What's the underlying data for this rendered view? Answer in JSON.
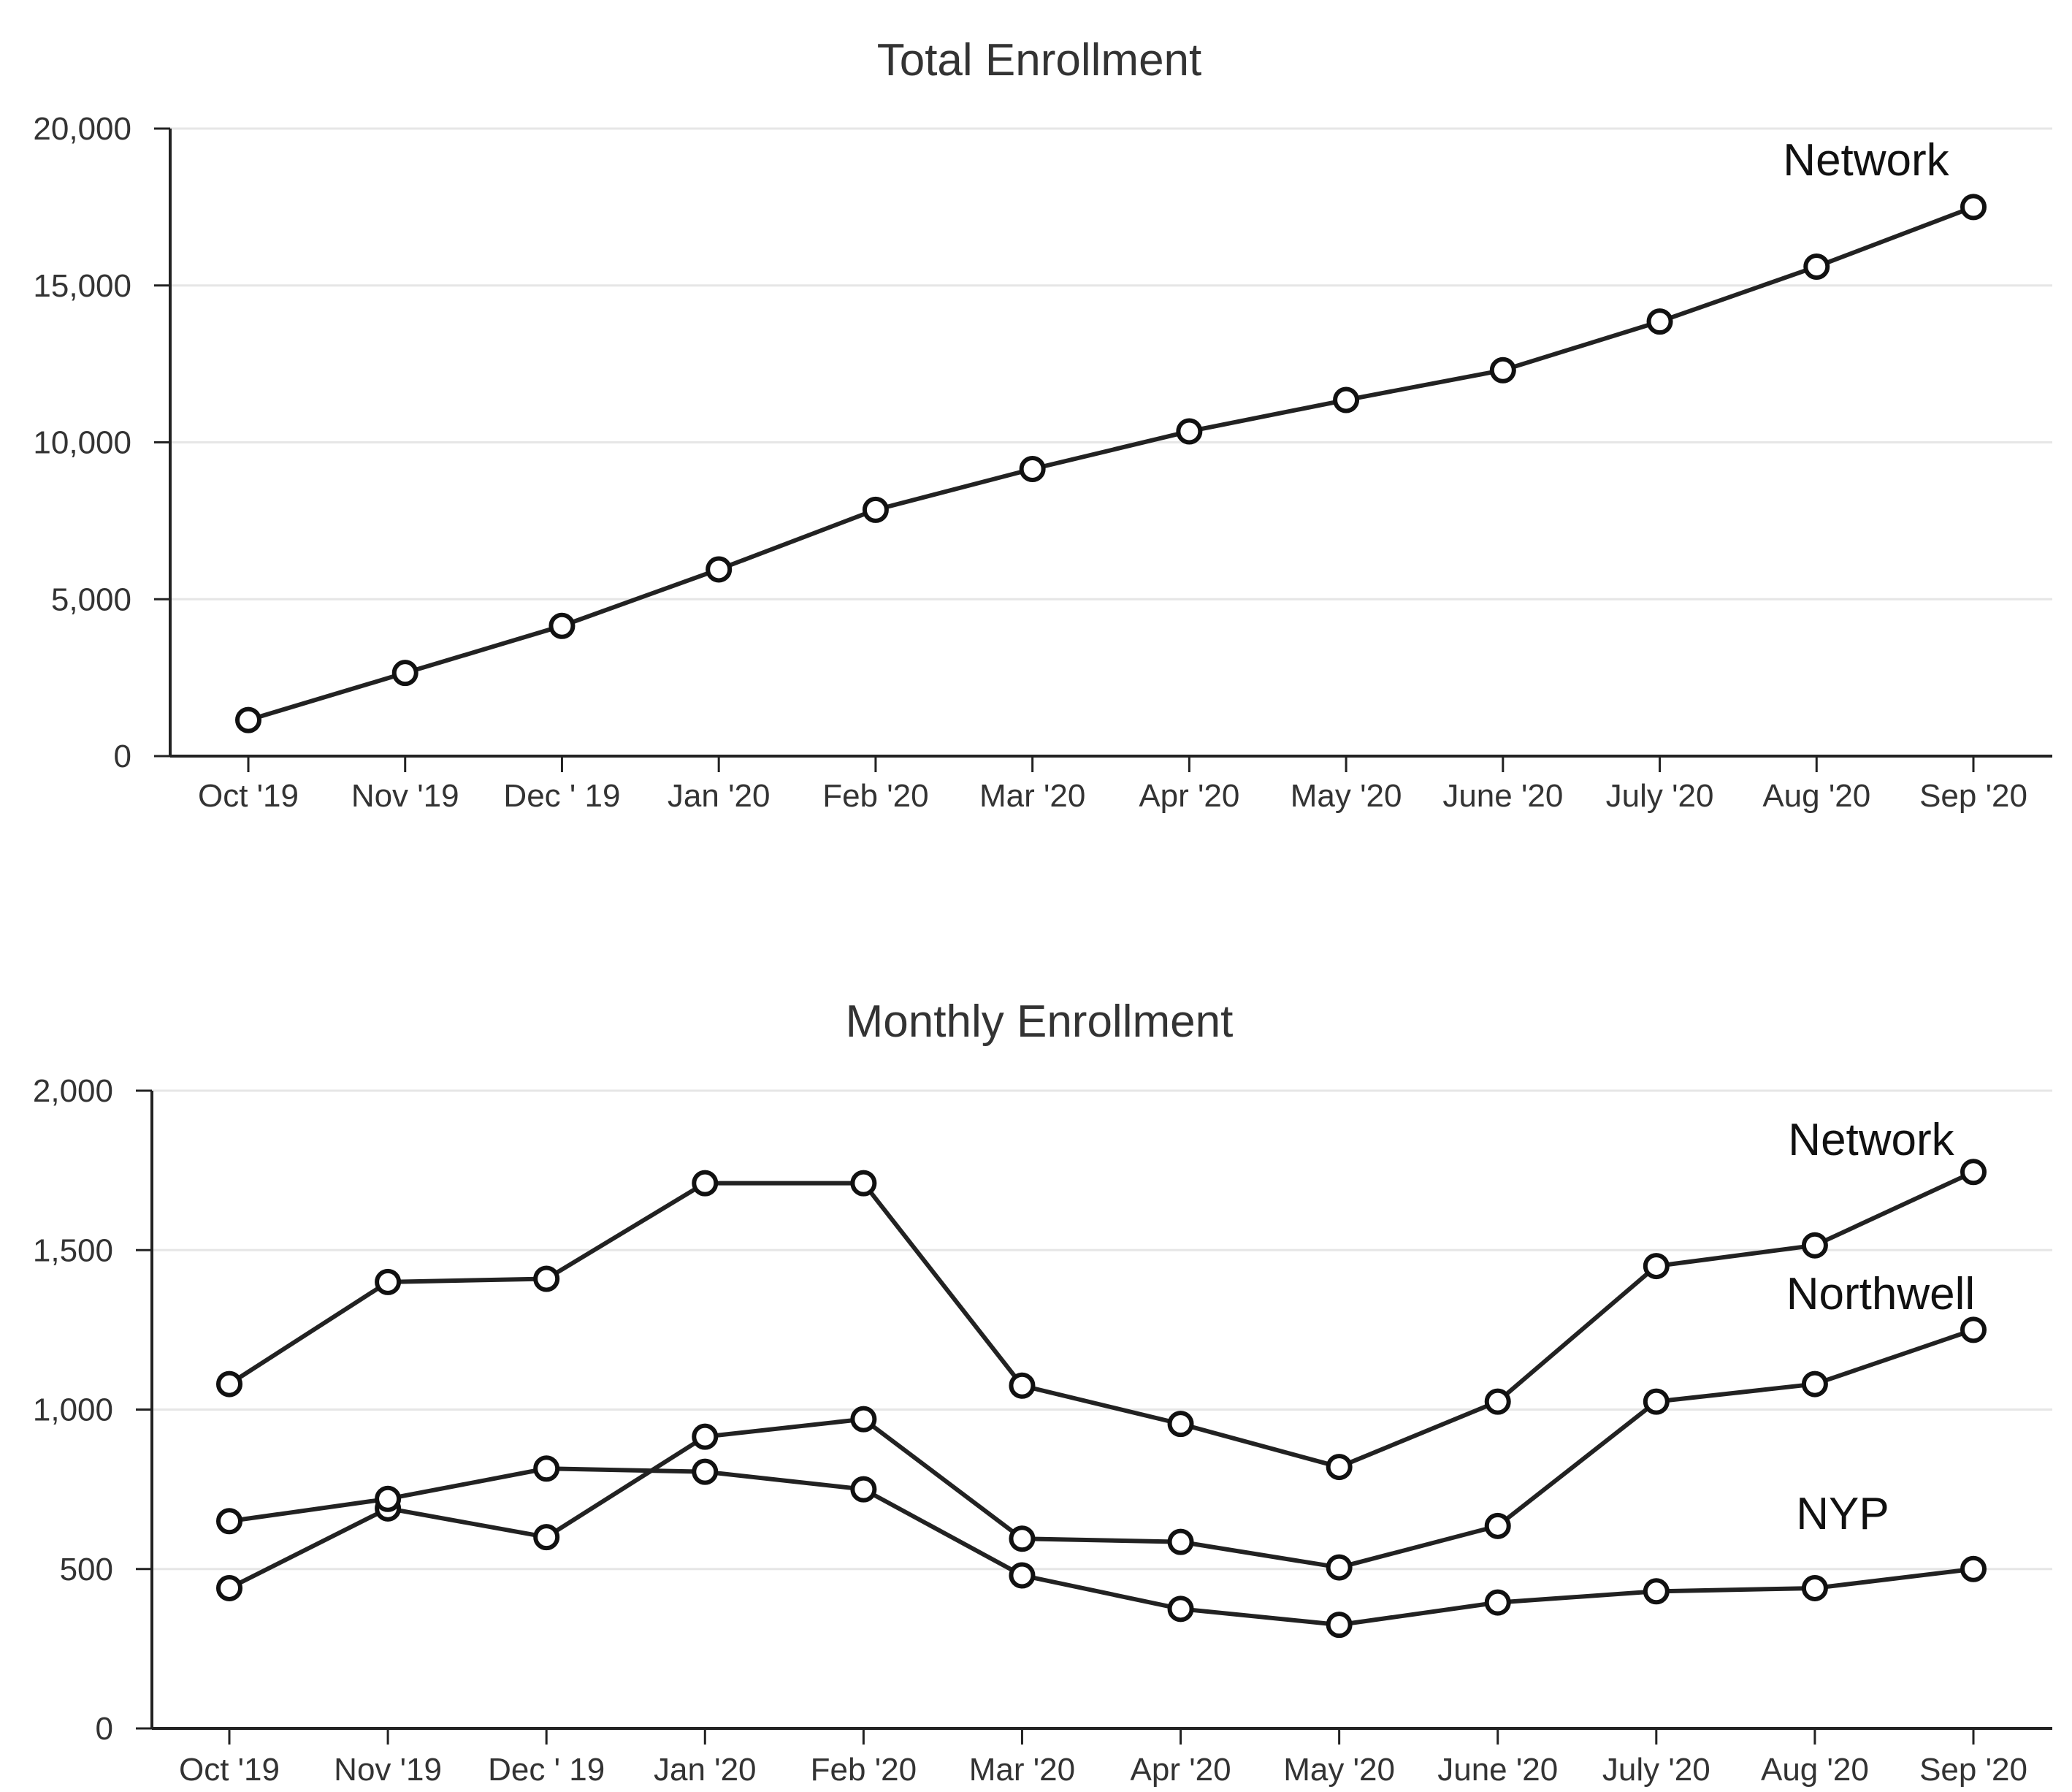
{
  "chart_data": [
    {
      "type": "line",
      "title": "Total Enrollment",
      "xlabel": "",
      "ylabel": "",
      "categories": [
        "Oct '19",
        "Nov '19",
        "Dec ' 19",
        "Jan '20",
        "Feb '20",
        "Mar '20",
        "Apr '20",
        "May '20",
        "June '20",
        "July '20",
        "Aug '20",
        "Sep '20"
      ],
      "ylim": [
        0,
        20000
      ],
      "yticks": [
        0,
        5000,
        10000,
        15000,
        20000
      ],
      "ytick_labels": [
        "0",
        "5,000",
        "10,000",
        "15,000",
        "20,000"
      ],
      "grid": true,
      "series": [
        {
          "name": "Network",
          "values": [
            1150,
            2650,
            4150,
            5950,
            7850,
            9150,
            10350,
            11350,
            12300,
            13850,
            15600,
            17500
          ]
        }
      ]
    },
    {
      "type": "line",
      "title": "Monthly Enrollment",
      "xlabel": "",
      "ylabel": "",
      "categories": [
        "Oct '19",
        "Nov '19",
        "Dec ' 19",
        "Jan '20",
        "Feb '20",
        "Mar '20",
        "Apr '20",
        "May '20",
        "June '20",
        "July '20",
        "Aug '20",
        "Sep '20"
      ],
      "ylim": [
        0,
        2000
      ],
      "yticks": [
        0,
        500,
        1000,
        1500,
        2000
      ],
      "ytick_labels": [
        "0",
        "500",
        "1,000",
        "1,500",
        "2,000"
      ],
      "grid": true,
      "series": [
        {
          "name": "Network",
          "values": [
            1080,
            1400,
            1410,
            1710,
            1710,
            1075,
            955,
            820,
            1025,
            1450,
            1515,
            1745
          ]
        },
        {
          "name": "Northwell",
          "values": [
            440,
            690,
            600,
            915,
            970,
            595,
            585,
            505,
            635,
            1025,
            1080,
            1250
          ]
        },
        {
          "name": "NYP",
          "values": [
            650,
            720,
            815,
            805,
            750,
            480,
            375,
            325,
            395,
            430,
            440,
            500
          ]
        }
      ]
    }
  ]
}
